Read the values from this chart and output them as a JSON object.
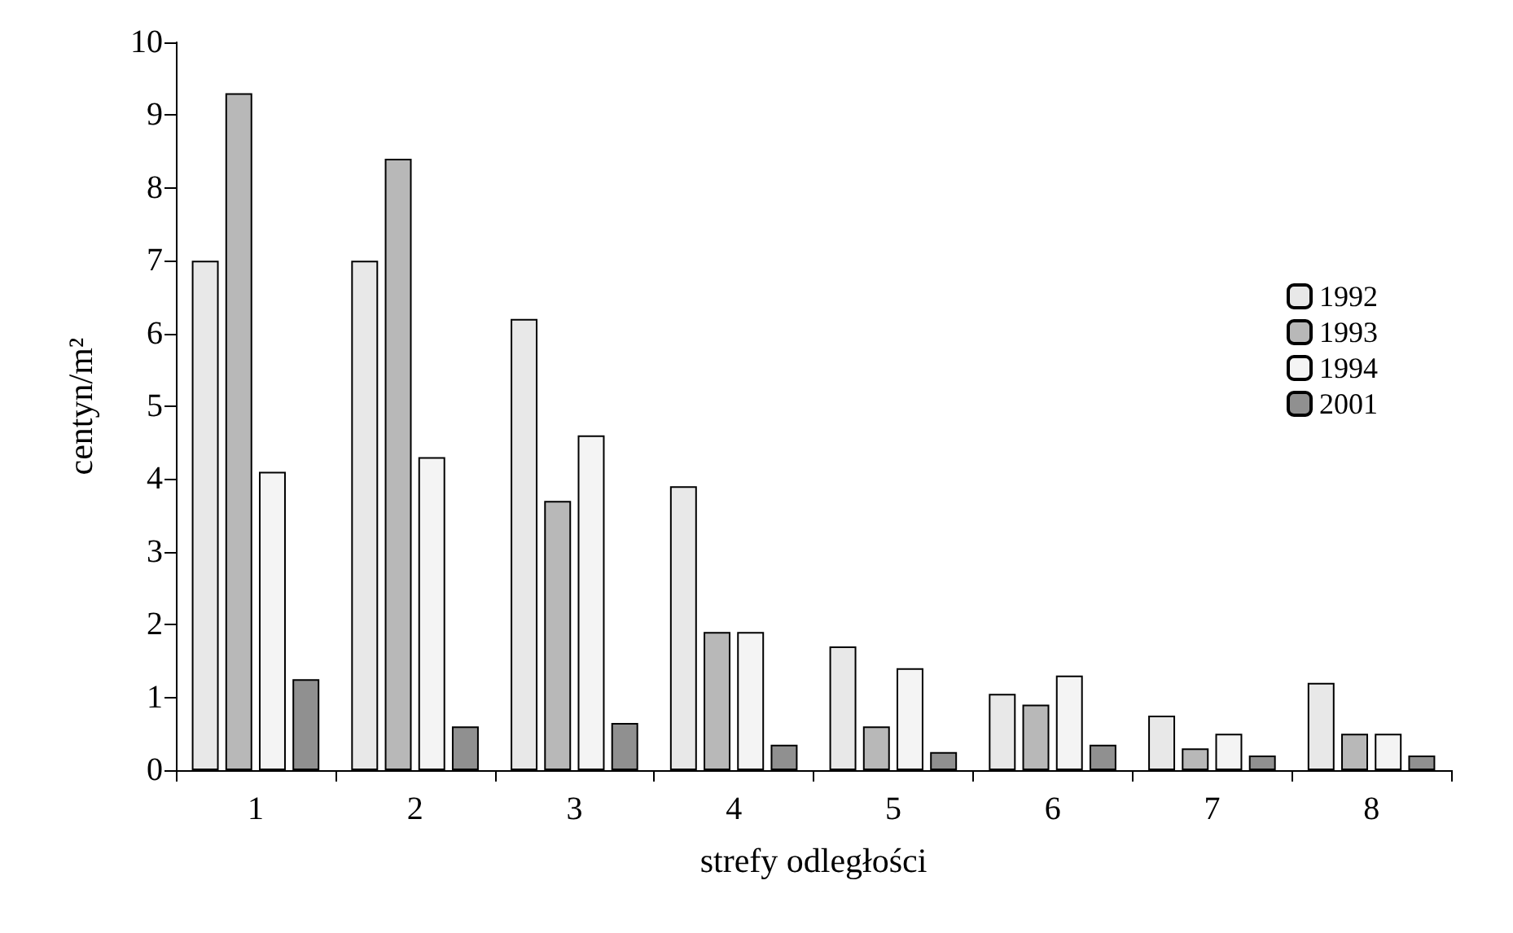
{
  "chart_data": {
    "type": "bar",
    "xlabel": "strefy odległości",
    "ylabel": "centyn/m²",
    "categories": [
      "1",
      "2",
      "3",
      "4",
      "5",
      "6",
      "7",
      "8"
    ],
    "series": [
      {
        "name": "1992",
        "color": "#e8e8e8",
        "values": [
          7.0,
          7.0,
          6.2,
          3.9,
          1.7,
          1.05,
          0.75,
          1.2
        ]
      },
      {
        "name": "1993",
        "color": "#b8b8b8",
        "values": [
          9.3,
          8.4,
          3.7,
          1.9,
          0.6,
          0.9,
          0.3,
          0.5
        ]
      },
      {
        "name": "1994",
        "color": "#f4f4f4",
        "values": [
          4.1,
          4.3,
          4.6,
          1.9,
          1.4,
          1.3,
          0.5,
          0.5
        ]
      },
      {
        "name": "2001",
        "color": "#909090",
        "values": [
          1.25,
          0.6,
          0.65,
          0.35,
          0.25,
          0.35,
          0.2,
          0.2
        ]
      }
    ],
    "ylim": [
      0,
      10
    ],
    "yticks": [
      0,
      1,
      2,
      3,
      4,
      5,
      6,
      7,
      8,
      9,
      10
    ],
    "grid": false,
    "legend": "top right"
  }
}
